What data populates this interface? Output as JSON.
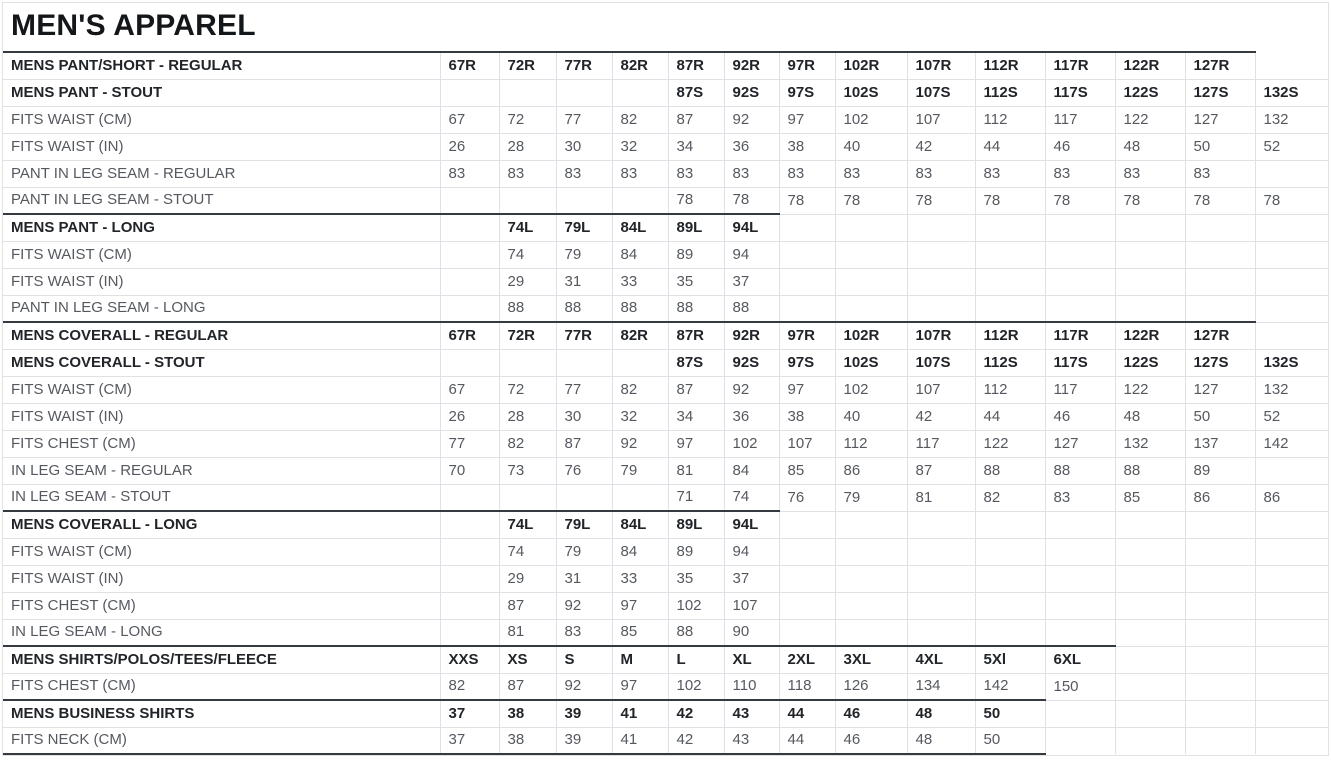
{
  "title": "MEN'S APPAREL",
  "colors": {
    "dark_border": "#343a40",
    "light_border": "#dee2e6",
    "header_text": "#212529",
    "cell_text": "#55595f",
    "background": "#ffffff"
  },
  "table": {
    "num_value_columns": 14,
    "rows": [
      {
        "label": "MENS PANT/SHORT - REGULAR",
        "bold": true,
        "section_start": true,
        "values": [
          "67R",
          "72R",
          "77R",
          "82R",
          "87R",
          "92R",
          "97R",
          "102R",
          "107R",
          "112R",
          "117R",
          "122R",
          "127R",
          ""
        ]
      },
      {
        "label": "MENS PANT - STOUT",
        "bold": true,
        "section_start": false,
        "values": [
          "",
          "",
          "",
          "",
          "87S",
          "92S",
          "97S",
          "102S",
          "107S",
          "112S",
          "117S",
          "122S",
          "127S",
          "132S"
        ]
      },
      {
        "label": "FITS WAIST (CM)",
        "bold": false,
        "section_start": false,
        "values": [
          "67",
          "72",
          "77",
          "82",
          "87",
          "92",
          "97",
          "102",
          "107",
          "112",
          "117",
          "122",
          "127",
          "132"
        ]
      },
      {
        "label": "FITS WAIST (IN)",
        "bold": false,
        "section_start": false,
        "values": [
          "26",
          "28",
          "30",
          "32",
          "34",
          "36",
          "38",
          "40",
          "42",
          "44",
          "46",
          "48",
          "50",
          "52"
        ]
      },
      {
        "label": "PANT IN LEG SEAM - REGULAR",
        "bold": false,
        "section_start": false,
        "values": [
          "83",
          "83",
          "83",
          "83",
          "83",
          "83",
          "83",
          "83",
          "83",
          "83",
          "83",
          "83",
          "83",
          ""
        ]
      },
      {
        "label": "PANT IN LEG SEAM - STOUT",
        "bold": false,
        "section_start": false,
        "values": [
          "",
          "",
          "",
          "",
          "78",
          "78",
          "78",
          "78",
          "78",
          "78",
          "78",
          "78",
          "78",
          "78"
        ]
      },
      {
        "label": "MENS PANT - LONG",
        "bold": true,
        "section_start": true,
        "values": [
          "",
          "74L",
          "79L",
          "84L",
          "89L",
          "94L",
          "",
          "",
          "",
          "",
          "",
          "",
          "",
          ""
        ]
      },
      {
        "label": "FITS WAIST (CM)",
        "bold": false,
        "section_start": false,
        "values": [
          "",
          "74",
          "79",
          "84",
          "89",
          "94",
          "",
          "",
          "",
          "",
          "",
          "",
          "",
          ""
        ]
      },
      {
        "label": "FITS WAIST (IN)",
        "bold": false,
        "section_start": false,
        "values": [
          "",
          "29",
          "31",
          "33",
          "35",
          "37",
          "",
          "",
          "",
          "",
          "",
          "",
          "",
          ""
        ]
      },
      {
        "label": "PANT IN LEG SEAM - LONG",
        "bold": false,
        "section_start": false,
        "values": [
          "",
          "88",
          "88",
          "88",
          "88",
          "88",
          "",
          "",
          "",
          "",
          "",
          "",
          "",
          ""
        ]
      },
      {
        "label": "MENS COVERALL - REGULAR",
        "bold": true,
        "section_start": true,
        "values": [
          "67R",
          "72R",
          "77R",
          "82R",
          "87R",
          "92R",
          "97R",
          "102R",
          "107R",
          "112R",
          "117R",
          "122R",
          "127R",
          ""
        ]
      },
      {
        "label": "MENS COVERALL - STOUT",
        "bold": true,
        "section_start": false,
        "values": [
          "",
          "",
          "",
          "",
          "87S",
          "92S",
          "97S",
          "102S",
          "107S",
          "112S",
          "117S",
          "122S",
          "127S",
          "132S"
        ]
      },
      {
        "label": "FITS WAIST (CM)",
        "bold": false,
        "section_start": false,
        "values": [
          "67",
          "72",
          "77",
          "82",
          "87",
          "92",
          "97",
          "102",
          "107",
          "112",
          "117",
          "122",
          "127",
          "132"
        ]
      },
      {
        "label": "FITS WAIST (IN)",
        "bold": false,
        "section_start": false,
        "values": [
          "26",
          "28",
          "30",
          "32",
          "34",
          "36",
          "38",
          "40",
          "42",
          "44",
          "46",
          "48",
          "50",
          "52"
        ]
      },
      {
        "label": "FITS CHEST (CM)",
        "bold": false,
        "section_start": false,
        "values": [
          "77",
          "82",
          "87",
          "92",
          "97",
          "102",
          "107",
          "112",
          "117",
          "122",
          "127",
          "132",
          "137",
          "142"
        ]
      },
      {
        "label": "IN LEG SEAM - REGULAR",
        "bold": false,
        "section_start": false,
        "values": [
          "70",
          "73",
          "76",
          "79",
          "81",
          "84",
          "85",
          "86",
          "87",
          "88",
          "88",
          "88",
          "89",
          ""
        ]
      },
      {
        "label": "IN LEG SEAM - STOUT",
        "bold": false,
        "section_start": false,
        "values": [
          "",
          "",
          "",
          "",
          "71",
          "74",
          "76",
          "79",
          "81",
          "82",
          "83",
          "85",
          "86",
          "86"
        ]
      },
      {
        "label": "MENS COVERALL - LONG",
        "bold": true,
        "section_start": true,
        "values": [
          "",
          "74L",
          "79L",
          "84L",
          "89L",
          "94L",
          "",
          "",
          "",
          "",
          "",
          "",
          "",
          ""
        ]
      },
      {
        "label": "FITS WAIST (CM)",
        "bold": false,
        "section_start": false,
        "values": [
          "",
          "74",
          "79",
          "84",
          "89",
          "94",
          "",
          "",
          "",
          "",
          "",
          "",
          "",
          ""
        ]
      },
      {
        "label": "FITS WAIST (IN)",
        "bold": false,
        "section_start": false,
        "values": [
          "",
          "29",
          "31",
          "33",
          "35",
          "37",
          "",
          "",
          "",
          "",
          "",
          "",
          "",
          ""
        ]
      },
      {
        "label": "FITS CHEST (CM)",
        "bold": false,
        "section_start": false,
        "values": [
          "",
          "87",
          "92",
          "97",
          "102",
          "107",
          "",
          "",
          "",
          "",
          "",
          "",
          "",
          ""
        ]
      },
      {
        "label": "IN LEG SEAM - LONG",
        "bold": false,
        "section_start": false,
        "values": [
          "",
          "81",
          "83",
          "85",
          "88",
          "90",
          "",
          "",
          "",
          "",
          "",
          "",
          "",
          ""
        ]
      },
      {
        "label": "MENS SHIRTS/POLOS/TEES/FLEECE",
        "bold": true,
        "section_start": true,
        "values": [
          "XXS",
          "XS",
          "S",
          "M",
          "L",
          "XL",
          "2XL",
          "3XL",
          "4XL",
          "5Xl",
          "6XL",
          "",
          "",
          ""
        ]
      },
      {
        "label": "FITS CHEST (CM)",
        "bold": false,
        "section_start": false,
        "values": [
          "82",
          "87",
          "92",
          "97",
          "102",
          "110",
          "118",
          "126",
          "134",
          "142",
          "150",
          "",
          "",
          ""
        ]
      },
      {
        "label": "MENS BUSINESS SHIRTS",
        "bold": true,
        "section_start": true,
        "values": [
          "37",
          "38",
          "39",
          "41",
          "42",
          "43",
          "44",
          "46",
          "48",
          "50",
          "",
          "",
          "",
          ""
        ]
      },
      {
        "label": "FITS NECK (CM)",
        "bold": false,
        "section_start": false,
        "values": [
          "37",
          "38",
          "39",
          "41",
          "42",
          "43",
          "44",
          "46",
          "48",
          "50",
          "",
          "",
          "",
          ""
        ]
      }
    ]
  }
}
